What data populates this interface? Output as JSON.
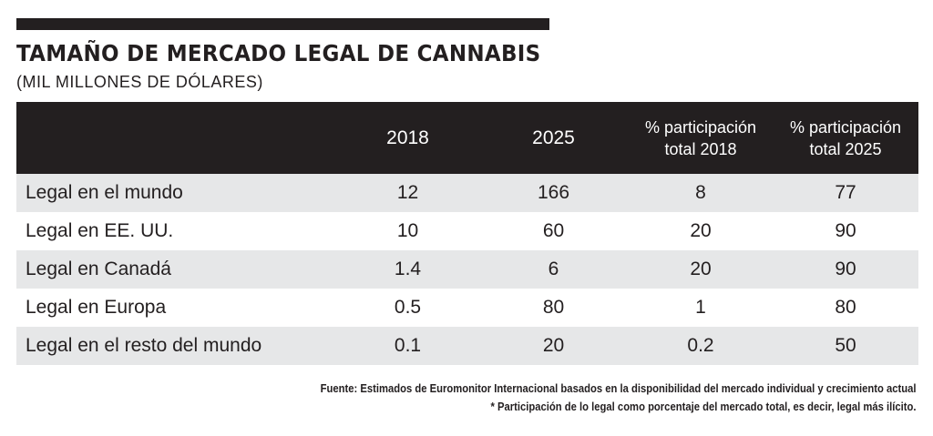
{
  "title": "TAMAÑO DE MERCADO LEGAL DE CANNABIS",
  "subtitle": "(MIL MILLONES DE DÓLARES)",
  "colors": {
    "header_bg": "#231f20",
    "row_shade": "#e6e7e8",
    "text": "#231f20"
  },
  "chart_data": {
    "type": "table",
    "title": "TAMAÑO DE MERCADO LEGAL DE CANNABIS",
    "subtitle": "(MIL MILLONES DE DÓLARES)",
    "columns": [
      {
        "label": "",
        "lines": [
          ""
        ]
      },
      {
        "label": "2018",
        "lines": [
          "2018"
        ]
      },
      {
        "label": "2025",
        "lines": [
          "2025"
        ]
      },
      {
        "label": "% participación total 2018",
        "lines": [
          "% participación",
          "total 2018"
        ]
      },
      {
        "label": "% participación total 2025",
        "lines": [
          "% participación",
          "total 2025"
        ]
      }
    ],
    "rows": [
      {
        "label": "Legal en el mundo",
        "values": [
          "12",
          "166",
          "8",
          "77"
        ]
      },
      {
        "label": "Legal en EE. UU.",
        "values": [
          "10",
          "60",
          "20",
          "90"
        ]
      },
      {
        "label": "Legal en Canadá",
        "values": [
          "1.4",
          "6",
          "20",
          "90"
        ]
      },
      {
        "label": "Legal en Europa",
        "values": [
          "0.5",
          "80",
          "1",
          "80"
        ]
      },
      {
        "label": "Legal en el resto del mundo",
        "values": [
          "0.1",
          "20",
          "0.2",
          "50"
        ]
      }
    ]
  },
  "notes": {
    "source": "Fuente: Estimados de Euromonitor Internacional basados en la disponibilidad del mercado individual y crecimiento actual",
    "footnote": "* Participación de lo legal como porcentaje del mercado total, es decir, legal más ilícito."
  }
}
